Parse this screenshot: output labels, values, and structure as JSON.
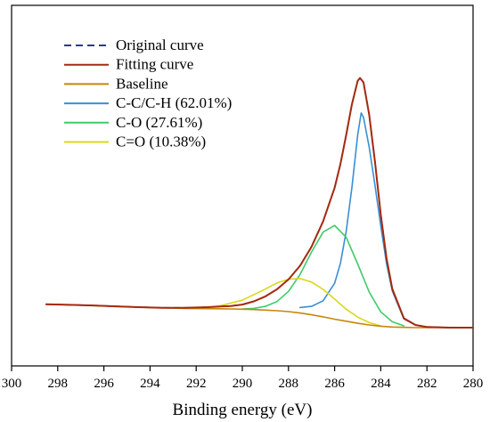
{
  "chart_data": {
    "type": "line",
    "title": "",
    "xlabel": "Binding energy (eV)",
    "ylabel": "",
    "xlim": [
      300,
      280
    ],
    "x_reversed": true,
    "x_ticks": [
      300,
      298,
      296,
      294,
      292,
      290,
      288,
      286,
      284,
      282,
      280
    ],
    "y_axis_shown": false,
    "grid": false,
    "legend_position": "top-left",
    "ylim": [
      0,
      100
    ],
    "series": [
      {
        "name": "Original curve",
        "color": "#2b3a8c",
        "style": "dashed",
        "x": [
          298.5,
          297.5,
          296.5,
          295.5,
          294.5,
          293.5,
          292.5,
          291.5,
          290.5,
          290.0,
          289.5,
          289.0,
          288.5,
          288.0,
          287.5,
          287.0,
          286.5,
          286.0,
          285.75,
          285.5,
          285.25,
          285.0,
          284.9,
          284.75,
          284.5,
          284.25,
          284.0,
          283.75,
          283.5,
          283.0,
          282.5,
          282.0,
          281.0,
          280.0
        ],
        "y": [
          8.0,
          7.8,
          7.6,
          7.3,
          7.0,
          6.8,
          6.8,
          7.0,
          7.4,
          7.9,
          9.0,
          10.7,
          13.1,
          16.5,
          21.2,
          27.7,
          36.4,
          47.9,
          56.0,
          66.0,
          76.5,
          84.5,
          85.5,
          84.0,
          72.9,
          56.8,
          38.7,
          23.7,
          13.3,
          3.2,
          0.9,
          0.2,
          0.0,
          0.0
        ]
      },
      {
        "name": "Fitting curve",
        "color": "#a52a0f",
        "style": "solid",
        "x": [
          298.5,
          297.5,
          296.5,
          295.5,
          294.5,
          293.5,
          292.5,
          291.5,
          290.5,
          290.0,
          289.5,
          289.0,
          288.5,
          288.0,
          287.5,
          287.0,
          286.5,
          286.0,
          285.75,
          285.5,
          285.25,
          285.0,
          284.9,
          284.75,
          284.5,
          284.25,
          284.0,
          283.75,
          283.5,
          283.0,
          282.5,
          282.0,
          281.0,
          280.0
        ],
        "y": [
          8.0,
          7.8,
          7.6,
          7.3,
          7.0,
          6.8,
          6.8,
          7.0,
          7.4,
          7.9,
          9.0,
          10.7,
          13.1,
          16.5,
          21.2,
          27.7,
          36.4,
          47.9,
          56.0,
          66.0,
          76.5,
          84.5,
          85.5,
          84.0,
          72.9,
          56.8,
          38.7,
          23.7,
          13.3,
          3.2,
          0.9,
          0.2,
          0.0,
          0.0
        ]
      },
      {
        "name": "Baseline",
        "color": "#c8860a",
        "style": "solid",
        "x": [
          298.5,
          297.5,
          296.5,
          295.5,
          294.5,
          293.5,
          292.5,
          291.5,
          290.5,
          290.0,
          289.5,
          289.0,
          288.5,
          288.0,
          287.5,
          287.0,
          286.5,
          286.0,
          285.5,
          285.0,
          284.5,
          284.0,
          283.5,
          283.0,
          282.5,
          282.0,
          281.0,
          280.0
        ],
        "y": [
          8.0,
          7.8,
          7.6,
          7.3,
          7.0,
          6.8,
          6.6,
          6.5,
          6.4,
          6.3,
          6.2,
          6.0,
          5.8,
          5.5,
          5.0,
          4.4,
          3.7,
          2.9,
          2.2,
          1.5,
          0.9,
          0.5,
          0.2,
          0.1,
          0.0,
          0.0,
          0.0,
          0.0
        ]
      },
      {
        "name": "C-C/C-H (62.01%)",
        "color": "#3a8fd6",
        "style": "solid",
        "x": [
          287.5,
          287.0,
          286.5,
          286.0,
          285.75,
          285.5,
          285.25,
          285.0,
          284.85,
          284.75,
          284.5,
          284.25,
          284.0,
          283.75,
          283.5,
          283.0,
          282.5,
          282.0
        ],
        "y": [
          6.9,
          7.3,
          9.2,
          15.2,
          22.0,
          33.0,
          48.0,
          66.0,
          73.5,
          72.0,
          61.8,
          48.7,
          34.8,
          21.9,
          12.6,
          3.0,
          0.9,
          0.2
        ]
      },
      {
        "name": "C-O (27.61%)",
        "color": "#3dcc6a",
        "style": "solid",
        "x": [
          290.0,
          289.5,
          289.0,
          288.5,
          288.0,
          287.5,
          287.0,
          286.5,
          286.0,
          285.5,
          285.0,
          284.5,
          284.0,
          283.5,
          283.0
        ],
        "y": [
          6.4,
          6.6,
          7.3,
          8.9,
          12.4,
          18.2,
          25.9,
          32.7,
          35.0,
          30.9,
          21.8,
          12.2,
          5.4,
          2.0,
          0.6
        ]
      },
      {
        "name": "C=O (10.38%)",
        "color": "#d8d81c",
        "style": "solid",
        "x": [
          292.0,
          291.0,
          290.0,
          289.0,
          288.5,
          288.0,
          287.5,
          287.0,
          286.5,
          286.0,
          285.5,
          285.0,
          284.5,
          284.0
        ],
        "y": [
          6.6,
          7.4,
          9.4,
          13.2,
          15.3,
          16.6,
          16.8,
          15.6,
          13.1,
          9.8,
          6.3,
          3.6,
          1.7,
          0.6
        ]
      }
    ]
  }
}
